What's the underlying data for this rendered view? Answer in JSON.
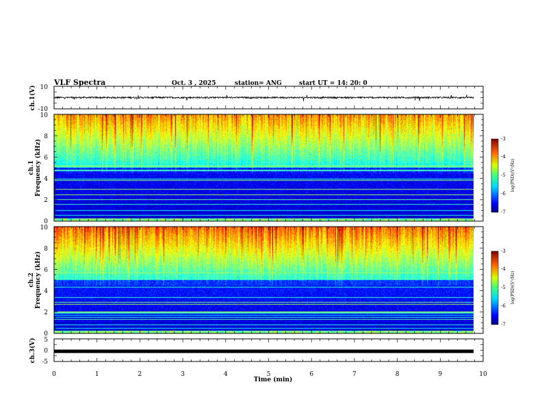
{
  "header": {
    "title": "VLF Spectra",
    "date": "Oct. 3  , 2025",
    "station": "station= ANG",
    "start": "start  UT  =   14: 20: 0"
  },
  "chart_data": {
    "type": "heatmap",
    "title": "VLF Spectra",
    "xlabel": "Time  (min)",
    "xlim": [
      0,
      10
    ],
    "xticks": [
      "0",
      "1",
      "2",
      "3",
      "4",
      "5",
      "6",
      "7",
      "8",
      "9",
      "10"
    ],
    "panels": [
      {
        "id": "ch1-waveform",
        "type": "line",
        "ylabel": "ch.1(V)",
        "ylim": [
          -10,
          10
        ],
        "ytick_labels": [
          "10",
          "-10"
        ],
        "mean_value": 0
      },
      {
        "id": "ch1-spectrogram",
        "type": "heatmap",
        "ylabel_top": "ch.1",
        "ylabel": "Frequency  (kHz)",
        "ylim": [
          0,
          10
        ],
        "ytick_labels": [
          "0",
          "2",
          "4",
          "6",
          "8",
          "10"
        ]
      },
      {
        "id": "ch2-spectrogram",
        "type": "heatmap",
        "ylabel_top": "ch.2",
        "ylabel": "Frequency  (kHz)",
        "ylim": [
          0,
          10
        ],
        "ytick_labels": [
          "0",
          "2",
          "4",
          "6",
          "8",
          "10"
        ]
      },
      {
        "id": "ch3-waveform",
        "type": "line",
        "ylabel": "ch.3(V)",
        "ylim": [
          -5,
          5
        ],
        "ytick_labels": [
          "5",
          "0",
          "-5"
        ],
        "mean_value": -0.5
      }
    ],
    "colorbar": {
      "label": "log(PSD)(V²/Hz)",
      "range": [
        -7,
        -3
      ],
      "tick_labels": [
        "-3",
        "-4",
        "-5",
        "-6",
        "-7"
      ]
    }
  }
}
